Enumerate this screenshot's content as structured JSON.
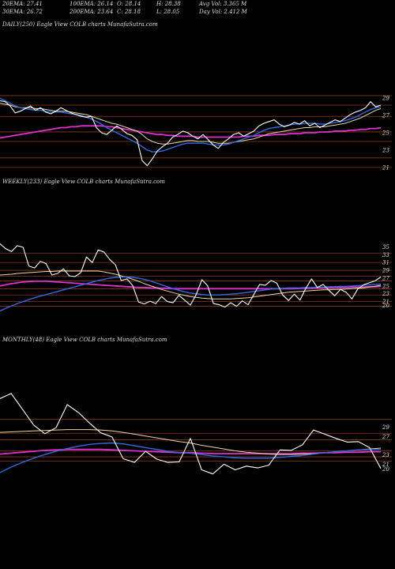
{
  "header": {
    "row1": [
      {
        "label": "20EMA: 27.41"
      },
      {
        "label": "100EMA: 26.14"
      },
      {
        "label": "O: 28.14"
      },
      {
        "label": "H: 28.38"
      },
      {
        "label": "Avg Vol: 3.365  M"
      }
    ],
    "row2": [
      {
        "label": "30EMA: 26.72"
      },
      {
        "label": "200EMA: 23.64"
      },
      {
        "label": "C: 28.18"
      },
      {
        "label": "L: 28.05"
      },
      {
        "label": "Day Vol: 2.412  M"
      }
    ]
  },
  "panels": [
    {
      "title": "DAILY(250) Eagle   View  COLB charts MunafaSutra.com"
    },
    {
      "title": "WEEKLY(233) Eagle   View  COLB charts MunafaSutra.com"
    },
    {
      "title": "MONTHLY(48) Eagle   View  COLB charts MunafaSutra.com"
    }
  ],
  "colors": {
    "price": "#ffffff",
    "ema_short": "#e8d9a0",
    "ema_mid": "#2d6be0",
    "ema_long": "#e030d0",
    "grid": "#8a3a1c"
  },
  "chart_data": [
    {
      "type": "line",
      "title": "DAILY(250) Eagle   View  COLB charts MunafaSutra.com",
      "ylim": [
        19.8,
        30.3
      ],
      "yticks": [
        29,
        27,
        25,
        23,
        21
      ],
      "gridlines": [
        29.3,
        28.2,
        26.9,
        25.1,
        24.0,
        22.1,
        21.0
      ],
      "series": [
        {
          "role": "price",
          "values": [
            28.7,
            28.6,
            28.1,
            27.3,
            27.5,
            27.8,
            28.1,
            27.6,
            27.9,
            27.4,
            27.2,
            27.5,
            27.9,
            27.6,
            27.3,
            27.1,
            26.9,
            26.8,
            26.9,
            25.6,
            25.0,
            24.8,
            25.3,
            25.8,
            25.4,
            24.9,
            24.7,
            24.2,
            21.8,
            21.2,
            22.0,
            22.9,
            23.4,
            23.8,
            24.5,
            24.8,
            25.2,
            25.0,
            24.6,
            24.3,
            24.8,
            24.2,
            23.6,
            23.2,
            23.9,
            24.3,
            24.8,
            25.0,
            24.6,
            24.9,
            25.2,
            25.8,
            26.1,
            26.3,
            26.5,
            26.0,
            25.7,
            25.9,
            26.2,
            26.0,
            26.4,
            25.8,
            26.1,
            25.6,
            25.9,
            26.2,
            26.5,
            26.3,
            26.7,
            27.1,
            27.4,
            27.6,
            27.9,
            28.6,
            28.0,
            28.2
          ]
        },
        {
          "role": "ema_short",
          "values": [
            28.4,
            28.3,
            28.2,
            28.0,
            27.9,
            27.9,
            27.9,
            27.8,
            27.8,
            27.7,
            27.6,
            27.5,
            27.5,
            27.5,
            27.4,
            27.3,
            27.2,
            27.1,
            26.9,
            26.7,
            26.5,
            26.3,
            26.1,
            26.0,
            25.8,
            25.6,
            25.4,
            25.2,
            24.8,
            24.3,
            24.0,
            23.8,
            23.7,
            23.7,
            23.8,
            23.9,
            24.0,
            24.1,
            24.1,
            24.0,
            24.0,
            24.0,
            23.9,
            23.8,
            23.8,
            23.8,
            23.9,
            24.0,
            24.1,
            24.2,
            24.3,
            24.5,
            24.7,
            24.9,
            25.0,
            25.1,
            25.2,
            25.3,
            25.4,
            25.5,
            25.6,
            25.6,
            25.7,
            25.7,
            25.7,
            25.8,
            25.9,
            26.0,
            26.1,
            26.3,
            26.5,
            26.7,
            27.0,
            27.3,
            27.6,
            27.8
          ]
        },
        {
          "role": "ema_mid",
          "values": [
            29.0,
            28.7,
            28.4,
            28.1,
            27.9,
            27.8,
            27.7,
            27.6,
            27.6,
            27.5,
            27.4,
            27.4,
            27.4,
            27.3,
            27.2,
            27.1,
            27.0,
            26.8,
            26.6,
            26.3,
            26.0,
            25.6,
            25.3,
            25.0,
            24.7,
            24.4,
            24.1,
            23.8,
            23.4,
            23.0,
            22.8,
            22.8,
            22.9,
            23.1,
            23.3,
            23.5,
            23.7,
            23.8,
            23.8,
            23.8,
            23.8,
            23.7,
            23.6,
            23.6,
            23.6,
            23.7,
            23.9,
            24.1,
            24.3,
            24.5,
            24.7,
            25.0,
            25.3,
            25.5,
            25.6,
            25.7,
            25.8,
            25.9,
            26.0,
            26.0,
            26.1,
            26.1,
            26.1,
            26.0,
            26.0,
            26.1,
            26.2,
            26.3,
            26.4,
            26.6,
            26.8,
            27.1,
            27.4,
            27.7,
            27.9,
            28.0
          ]
        },
        {
          "role": "ema_long",
          "values": [
            24.4,
            24.5,
            24.6,
            24.7,
            24.8,
            24.9,
            25.0,
            25.1,
            25.2,
            25.3,
            25.4,
            25.5,
            25.6,
            25.6,
            25.7,
            25.7,
            25.8,
            25.8,
            25.8,
            25.8,
            25.8,
            25.7,
            25.7,
            25.6,
            25.5,
            25.4,
            25.3,
            25.2,
            25.1,
            25.0,
            24.9,
            24.8,
            24.8,
            24.7,
            24.7,
            24.6,
            24.6,
            24.6,
            24.6,
            24.5,
            24.5,
            24.5,
            24.5,
            24.5,
            24.5,
            24.5,
            24.5,
            24.5,
            24.6,
            24.6,
            24.6,
            24.7,
            24.7,
            24.7,
            24.8,
            24.8,
            24.8,
            24.9,
            24.9,
            24.9,
            25.0,
            25.0,
            25.0,
            25.1,
            25.1,
            25.1,
            25.2,
            25.2,
            25.2,
            25.3,
            25.3,
            25.4,
            25.4,
            25.5,
            25.5,
            25.6
          ]
        }
      ]
    },
    {
      "type": "line",
      "title": "WEEKLY(233) Eagle   View  COLB charts MunafaSutra.com",
      "ylim": [
        18.3,
        37.5
      ],
      "yticks": [
        35,
        33,
        31,
        29,
        27,
        25,
        23,
        21,
        20
      ],
      "gridlines": [
        33.4,
        31.0,
        29.0,
        27.5,
        26.3,
        24.3,
        22.7,
        21.0,
        19.8
      ],
      "series": [
        {
          "role": "price",
          "values": [
            35.8,
            34.5,
            33.8,
            35.3,
            34.9,
            30.1,
            29.6,
            31.3,
            30.7,
            27.8,
            28.2,
            29.4,
            27.6,
            27.4,
            28.4,
            32.4,
            31.0,
            34.2,
            33.7,
            31.8,
            30.4,
            26.4,
            26.8,
            25.1,
            20.9,
            20.4,
            21.1,
            20.5,
            22.3,
            21.0,
            20.7,
            22.6,
            21.4,
            20.1,
            22.8,
            26.6,
            25.0,
            20.5,
            20.2,
            19.6,
            20.7,
            19.8,
            21.2,
            20.2,
            22.8,
            25.4,
            25.2,
            26.4,
            25.7,
            22.7,
            21.3,
            22.9,
            21.4,
            24.4,
            26.8,
            24.6,
            25.4,
            23.9,
            22.5,
            24.1,
            23.4,
            21.7,
            24.2,
            25.3,
            25.8,
            26.3,
            27.3
          ]
        },
        {
          "role": "ema_short",
          "values": [
            27.8,
            27.9,
            28.0,
            28.2,
            28.3,
            28.4,
            28.5,
            28.6,
            28.7,
            28.7,
            28.8,
            28.8,
            28.8,
            28.8,
            28.8,
            28.8,
            28.8,
            28.8,
            28.6,
            28.3,
            28.0,
            27.6,
            27.2,
            26.7,
            26.2,
            25.6,
            25.1,
            24.6,
            24.1,
            23.7,
            23.3,
            22.9,
            22.6,
            22.3,
            22.1,
            21.9,
            21.8,
            21.7,
            21.7,
            21.7,
            21.7,
            21.8,
            21.9,
            22.0,
            22.2,
            22.4,
            22.6,
            22.8,
            23.0,
            23.2,
            23.4,
            23.5,
            23.6,
            23.7,
            23.8,
            23.9,
            24.0,
            24.0,
            24.1,
            24.1,
            24.2,
            24.3,
            24.4,
            24.5,
            24.7,
            24.9,
            25.2
          ]
        },
        {
          "role": "ema_mid",
          "values": [
            18.6,
            19.3,
            19.9,
            20.5,
            21.0,
            21.5,
            22.0,
            22.4,
            22.8,
            23.2,
            23.6,
            24.0,
            24.4,
            24.8,
            25.2,
            25.6,
            26.0,
            26.4,
            26.7,
            27.0,
            27.2,
            27.3,
            27.3,
            27.2,
            27.0,
            26.7,
            26.3,
            25.8,
            25.3,
            24.8,
            24.3,
            23.9,
            23.5,
            23.2,
            23.0,
            22.8,
            22.7,
            22.7,
            22.7,
            22.8,
            22.9,
            23.0,
            23.2,
            23.4,
            23.6,
            23.8,
            24.0,
            24.2,
            24.3,
            24.4,
            24.5,
            24.5,
            24.5,
            24.6,
            24.6,
            24.7,
            24.7,
            24.8,
            24.8,
            24.9,
            24.9,
            25.0,
            25.1,
            25.2,
            25.3,
            25.4,
            25.5
          ]
        },
        {
          "role": "ema_long",
          "values": [
            25.0,
            25.3,
            25.6,
            25.8,
            26.0,
            26.1,
            26.2,
            26.2,
            26.2,
            26.1,
            26.0,
            25.9,
            25.8,
            25.7,
            25.6,
            25.5,
            25.4,
            25.3,
            25.2,
            25.1,
            25.0,
            24.9,
            24.8,
            24.7,
            24.6,
            24.6,
            24.5,
            24.5,
            24.4,
            24.4,
            24.3,
            24.3,
            24.3,
            24.3,
            24.3,
            24.3,
            24.3,
            24.3,
            24.3,
            24.3,
            24.3,
            24.3,
            24.3,
            24.3,
            24.3,
            24.3,
            24.3,
            24.3,
            24.3,
            24.3,
            24.3,
            24.3,
            24.4,
            24.4,
            24.4,
            24.5,
            24.5,
            24.5,
            24.6,
            24.6,
            24.6,
            24.7,
            24.7,
            24.7,
            24.8,
            24.8,
            24.9
          ]
        }
      ]
    },
    {
      "type": "line",
      "title": "MONTHLY(48) Eagle   View  COLB charts MunafaSutra.com",
      "ylim": [
        18.0,
        36.8
      ],
      "yticks": [
        29,
        27,
        23,
        21,
        20
      ],
      "gridlines": [
        30.7,
        27.7,
        26.3,
        23.9,
        22.6,
        21.7
      ],
      "series": [
        {
          "role": "price",
          "values": [
            35.2,
            36.3,
            32.9,
            29.5,
            27.6,
            28.9,
            33.9,
            32.2,
            29.9,
            27.8,
            26.9,
            22.2,
            21.4,
            23.8,
            22.1,
            21.4,
            21.5,
            26.6,
            19.8,
            18.9,
            21.0,
            19.8,
            20.6,
            20.2,
            20.8,
            24.1,
            24.0,
            25.2,
            28.4,
            27.5,
            26.6,
            25.8,
            25.9,
            24.6,
            20.1
          ]
        },
        {
          "role": "ema_short",
          "values": [
            27.9,
            28.0,
            28.1,
            28.2,
            28.3,
            28.4,
            28.5,
            28.5,
            28.5,
            28.4,
            28.2,
            27.9,
            27.5,
            27.1,
            26.7,
            26.3,
            25.9,
            25.6,
            25.1,
            24.7,
            24.3,
            23.9,
            23.6,
            23.4,
            23.2,
            23.1,
            23.1,
            23.2,
            23.3,
            23.5,
            23.7,
            23.9,
            24.1,
            24.3,
            24.5
          ]
        },
        {
          "role": "ema_mid",
          "values": [
            19.2,
            20.4,
            21.4,
            22.3,
            23.1,
            23.8,
            24.4,
            24.9,
            25.3,
            25.5,
            25.6,
            25.4,
            25.0,
            24.6,
            24.2,
            23.8,
            23.5,
            23.4,
            23.1,
            22.8,
            22.6,
            22.4,
            22.3,
            22.3,
            22.3,
            22.5,
            22.7,
            22.9,
            23.2,
            23.5,
            23.7,
            23.9,
            24.1,
            24.2,
            24.2
          ]
        },
        {
          "role": "ema_long",
          "values": [
            23.2,
            23.4,
            23.6,
            23.8,
            24.0,
            24.1,
            24.2,
            24.2,
            24.2,
            24.2,
            24.1,
            24.0,
            23.9,
            23.8,
            23.7,
            23.6,
            23.5,
            23.5,
            23.4,
            23.3,
            23.3,
            23.3,
            23.3,
            23.3,
            23.3,
            23.3,
            23.3,
            23.4,
            23.4,
            23.5,
            23.5,
            23.6,
            23.6,
            23.7,
            23.7
          ]
        }
      ]
    }
  ]
}
